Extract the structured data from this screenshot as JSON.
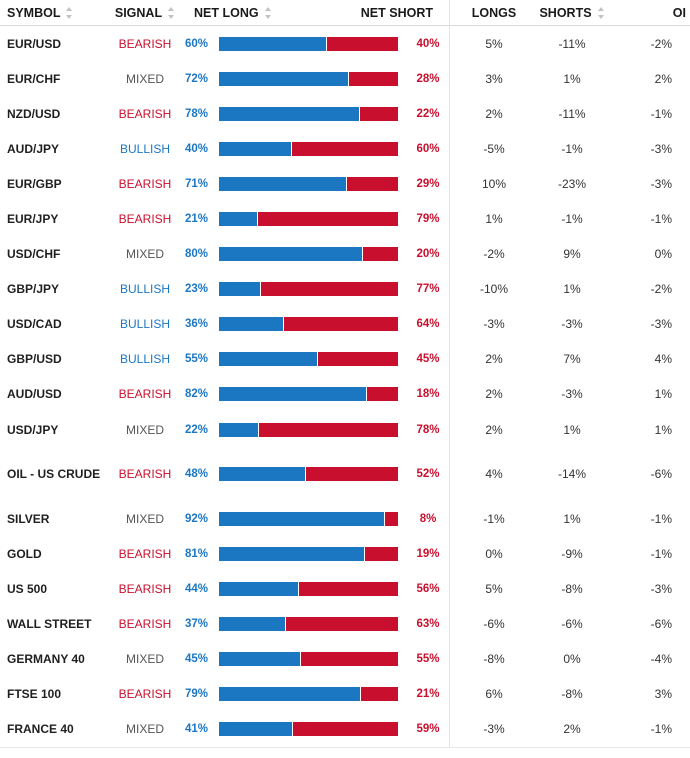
{
  "header": {
    "symbol": "SYMBOL",
    "signal": "SIGNAL",
    "net_long": "NET LONG",
    "net_short": "NET SHORT",
    "longs": "LONGS",
    "shorts": "SHORTS",
    "oi": "OI"
  },
  "colors": {
    "long": "#1c77c3",
    "short": "#c8102e",
    "mixed": "#555555"
  },
  "rows": [
    {
      "symbol": "EUR/USD",
      "signal": "BEARISH",
      "net_long": "60%",
      "net_short": "40%",
      "long_frac": 0.6,
      "longs": "5%",
      "shorts": "-11%",
      "oi": "-2%"
    },
    {
      "symbol": "EUR/CHF",
      "signal": "MIXED",
      "net_long": "72%",
      "net_short": "28%",
      "long_frac": 0.72,
      "longs": "3%",
      "shorts": "1%",
      "oi": "2%"
    },
    {
      "symbol": "NZD/USD",
      "signal": "BEARISH",
      "net_long": "78%",
      "net_short": "22%",
      "long_frac": 0.78,
      "longs": "2%",
      "shorts": "-11%",
      "oi": "-1%"
    },
    {
      "symbol": "AUD/JPY",
      "signal": "BULLISH",
      "net_long": "40%",
      "net_short": "60%",
      "long_frac": 0.4,
      "longs": "-5%",
      "shorts": "-1%",
      "oi": "-3%"
    },
    {
      "symbol": "EUR/GBP",
      "signal": "BEARISH",
      "net_long": "71%",
      "net_short": "29%",
      "long_frac": 0.71,
      "longs": "10%",
      "shorts": "-23%",
      "oi": "-3%"
    },
    {
      "symbol": "EUR/JPY",
      "signal": "BEARISH",
      "net_long": "21%",
      "net_short": "79%",
      "long_frac": 0.21,
      "longs": "1%",
      "shorts": "-1%",
      "oi": "-1%"
    },
    {
      "symbol": "USD/CHF",
      "signal": "MIXED",
      "net_long": "80%",
      "net_short": "20%",
      "long_frac": 0.8,
      "longs": "-2%",
      "shorts": "9%",
      "oi": "0%"
    },
    {
      "symbol": "GBP/JPY",
      "signal": "BULLISH",
      "net_long": "23%",
      "net_short": "77%",
      "long_frac": 0.23,
      "longs": "-10%",
      "shorts": "1%",
      "oi": "-2%"
    },
    {
      "symbol": "USD/CAD",
      "signal": "BULLISH",
      "net_long": "36%",
      "net_short": "64%",
      "long_frac": 0.36,
      "longs": "-3%",
      "shorts": "-3%",
      "oi": "-3%"
    },
    {
      "symbol": "GBP/USD",
      "signal": "BULLISH",
      "net_long": "55%",
      "net_short": "45%",
      "long_frac": 0.55,
      "longs": "2%",
      "shorts": "7%",
      "oi": "4%"
    },
    {
      "symbol": "AUD/USD",
      "signal": "BEARISH",
      "net_long": "82%",
      "net_short": "18%",
      "long_frac": 0.82,
      "longs": "2%",
      "shorts": "-3%",
      "oi": "1%"
    },
    {
      "symbol": "USD/JPY",
      "signal": "MIXED",
      "net_long": "22%",
      "net_short": "78%",
      "long_frac": 0.22,
      "longs": "2%",
      "shorts": "1%",
      "oi": "1%"
    },
    {
      "symbol": "OIL - US CRUDE",
      "signal": "BEARISH",
      "net_long": "48%",
      "net_short": "52%",
      "long_frac": 0.48,
      "longs": "4%",
      "shorts": "-14%",
      "oi": "-6%"
    },
    {
      "symbol": "SILVER",
      "signal": "MIXED",
      "net_long": "92%",
      "net_short": "8%",
      "long_frac": 0.92,
      "longs": "-1%",
      "shorts": "1%",
      "oi": "-1%"
    },
    {
      "symbol": "GOLD",
      "signal": "BEARISH",
      "net_long": "81%",
      "net_short": "19%",
      "long_frac": 0.81,
      "longs": "0%",
      "shorts": "-9%",
      "oi": "-1%"
    },
    {
      "symbol": "US 500",
      "signal": "BEARISH",
      "net_long": "44%",
      "net_short": "56%",
      "long_frac": 0.44,
      "longs": "5%",
      "shorts": "-8%",
      "oi": "-3%"
    },
    {
      "symbol": "WALL STREET",
      "signal": "BEARISH",
      "net_long": "37%",
      "net_short": "63%",
      "long_frac": 0.37,
      "longs": "-6%",
      "shorts": "-6%",
      "oi": "-6%"
    },
    {
      "symbol": "GERMANY 40",
      "signal": "MIXED",
      "net_long": "45%",
      "net_short": "55%",
      "long_frac": 0.45,
      "longs": "-8%",
      "shorts": "0%",
      "oi": "-4%"
    },
    {
      "symbol": "FTSE 100",
      "signal": "BEARISH",
      "net_long": "79%",
      "net_short": "21%",
      "long_frac": 0.79,
      "longs": "6%",
      "shorts": "-8%",
      "oi": "3%"
    },
    {
      "symbol": "FRANCE 40",
      "signal": "MIXED",
      "net_long": "41%",
      "net_short": "59%",
      "long_frac": 0.41,
      "longs": "-3%",
      "shorts": "2%",
      "oi": "-1%"
    }
  ]
}
